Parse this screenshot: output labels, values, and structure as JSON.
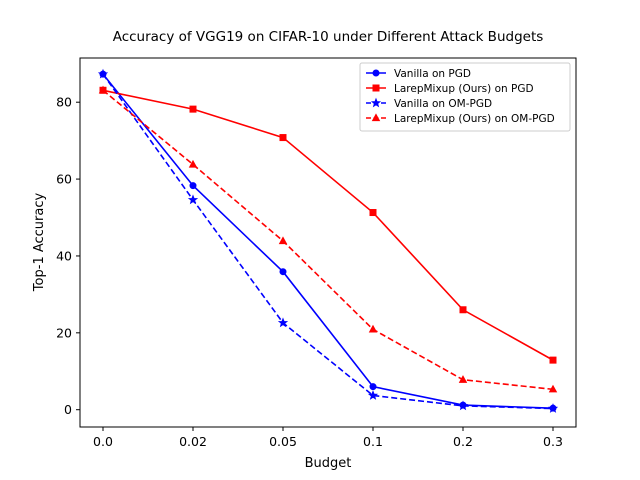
{
  "chart_data": {
    "type": "line",
    "title": "Accuracy of VGG19 on CIFAR-10 under Different Attack Budgets",
    "xlabel": "Budget",
    "ylabel": "Top-1 Accuracy",
    "categories": [
      "0.0",
      "0.02",
      "0.05",
      "0.1",
      "0.2",
      "0.3"
    ],
    "yticks": [
      "0",
      "20",
      "40",
      "60",
      "80"
    ],
    "ylim": [
      -4.5,
      91.5
    ],
    "grid": false,
    "legend_position": "top-right",
    "series": [
      {
        "name": "Vanilla on PGD",
        "values": [
          87.3,
          58.3,
          35.9,
          6.0,
          1.2,
          0.4
        ],
        "color": "#0000ff",
        "marker": "circle",
        "dash": "solid"
      },
      {
        "name": "LarepMixup (Ours) on PGD",
        "values": [
          83.1,
          78.2,
          70.8,
          51.3,
          26.0,
          12.9
        ],
        "color": "#ff0000",
        "marker": "square",
        "dash": "solid"
      },
      {
        "name": "Vanilla on OM-PGD",
        "values": [
          87.3,
          54.6,
          22.6,
          3.7,
          1.0,
          0.3
        ],
        "color": "#0000ff",
        "marker": "star",
        "dash": "dashed"
      },
      {
        "name": "LarepMixup (Ours) on OM-PGD",
        "values": [
          83.1,
          63.8,
          43.9,
          20.9,
          7.8,
          5.3
        ],
        "color": "#ff0000",
        "marker": "triangle",
        "dash": "dashed"
      }
    ]
  }
}
